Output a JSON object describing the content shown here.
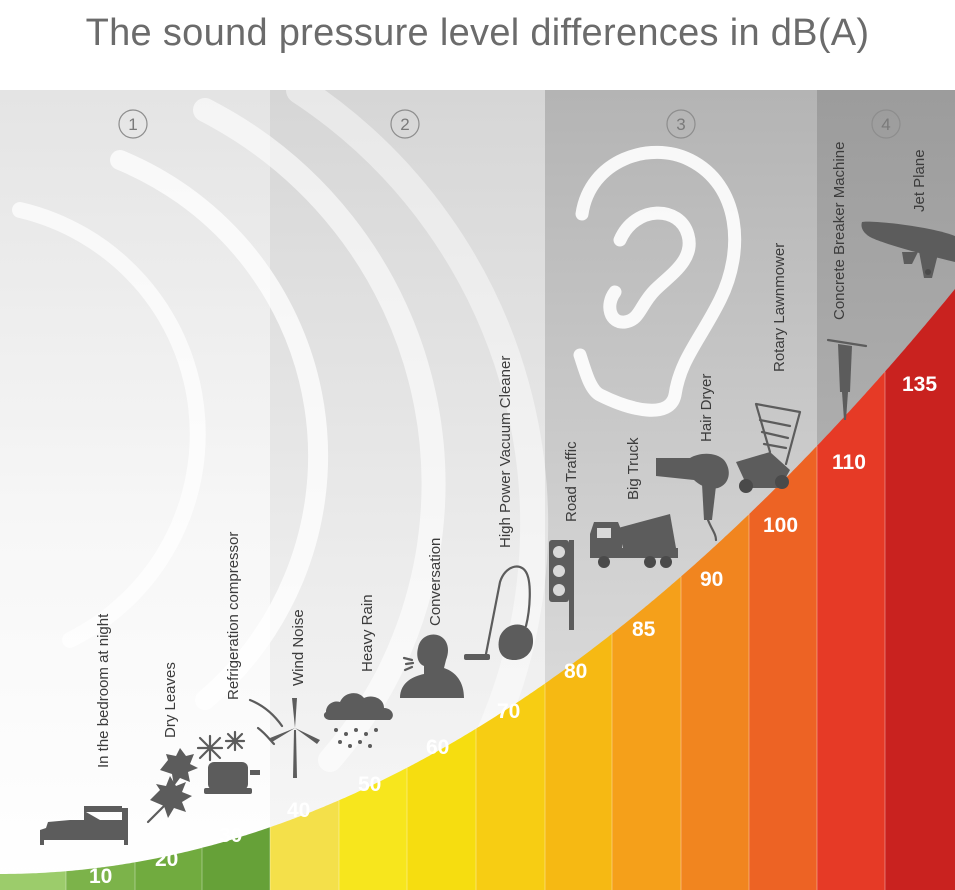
{
  "title": "The sound pressure level differences in dB(A)",
  "zones": [
    {
      "number": "1"
    },
    {
      "number": "2"
    },
    {
      "number": "3"
    },
    {
      "number": "4"
    }
  ],
  "levels": [
    {
      "value": "10",
      "label": "In the bedroom at night",
      "icon": "bed-icon",
      "color": "#7cb34a"
    },
    {
      "value": "20",
      "label": "Dry Leaves",
      "icon": "leaves-icon",
      "color": "#71ab3f"
    },
    {
      "value": "30",
      "label": "Refrigeration compressor",
      "icon": "compressor-icon",
      "color": "#66a138"
    },
    {
      "value": "40",
      "label": "Wind Noise",
      "icon": "wind-turbine-icon",
      "color": "#f4e04a"
    },
    {
      "value": "50",
      "label": "Heavy Rain",
      "icon": "rain-cloud-icon",
      "color": "#f7e61d"
    },
    {
      "value": "60",
      "label": "Conversation",
      "icon": "person-talking-icon",
      "color": "#f6dd10"
    },
    {
      "value": "70",
      "label": "High Power Vacuum Cleaner",
      "icon": "vacuum-cleaner-icon",
      "color": "#f7cd13"
    },
    {
      "value": "80",
      "label": "Road Traffic",
      "icon": "traffic-light-icon",
      "color": "#f6b913"
    },
    {
      "value": "85",
      "label": "Big Truck",
      "icon": "truck-icon",
      "color": "#f5a01a"
    },
    {
      "value": "90",
      "label": "Hair Dryer",
      "icon": "hair-dryer-icon",
      "color": "#f1851f"
    },
    {
      "value": "100",
      "label": "Rotary Lawnmower",
      "icon": "lawnmower-icon",
      "color": "#ed6324"
    },
    {
      "value": "110",
      "label": "Concrete Breaker Machine",
      "icon": "jackhammer-icon",
      "color": "#e63a26"
    },
    {
      "value": "135",
      "label": "Jet Plane",
      "icon": "airplane-icon",
      "color": "#c9221f"
    }
  ],
  "colors": {
    "zone1_bg": "#f2f2f2",
    "zone2_bg": "#e6e6e6",
    "zone3_bg": "#c4c4c4",
    "zone4_bg": "#a9a9a9",
    "icon": "#5c5c5c",
    "title": "#6b6b6b"
  }
}
